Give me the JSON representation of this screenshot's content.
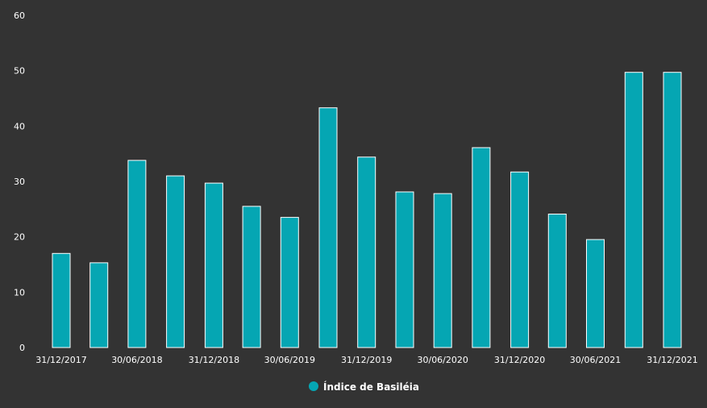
{
  "chart_data": {
    "type": "bar",
    "x_ticks": [
      "31/12/2017",
      "30/06/2018",
      "31/12/2018",
      "30/06/2019",
      "31/12/2019",
      "30/06/2020",
      "31/12/2020",
      "30/06/2021",
      "31/12/2021"
    ],
    "bars": [
      {
        "x": "2017-12-31",
        "value": 17.0
      },
      {
        "x": "2018-03-31",
        "value": 15.3
      },
      {
        "x": "2018-06-30",
        "value": 33.8
      },
      {
        "x": "2018-09-30",
        "value": 31.0
      },
      {
        "x": "2018-12-31",
        "value": 29.7
      },
      {
        "x": "2019-03-31",
        "value": 25.5
      },
      {
        "x": "2019-06-30",
        "value": 23.5
      },
      {
        "x": "2019-09-30",
        "value": 43.3
      },
      {
        "x": "2019-12-31",
        "value": 34.4
      },
      {
        "x": "2020-03-31",
        "value": 28.1
      },
      {
        "x": "2020-06-30",
        "value": 27.8
      },
      {
        "x": "2020-09-30",
        "value": 36.1
      },
      {
        "x": "2020-12-31",
        "value": 31.7
      },
      {
        "x": "2021-03-31",
        "value": 24.1
      },
      {
        "x": "2021-06-30",
        "value": 19.5
      },
      {
        "x": "2021-09-30",
        "value": 49.7
      },
      {
        "x": "2021-12-31",
        "value": 49.7
      }
    ],
    "series": [
      {
        "name": "Índice de Basiléia",
        "color": "#05a6b3"
      }
    ],
    "ylim": [
      0,
      60
    ],
    "y_ticks": [
      0,
      10,
      20,
      30,
      40,
      50,
      60
    ],
    "grid": false,
    "legend_position": "bottom-center",
    "colors": {
      "background": "#333333",
      "bar": "#05a6b3",
      "bar_outline": "#ffffff",
      "text": "#ffffff"
    }
  }
}
